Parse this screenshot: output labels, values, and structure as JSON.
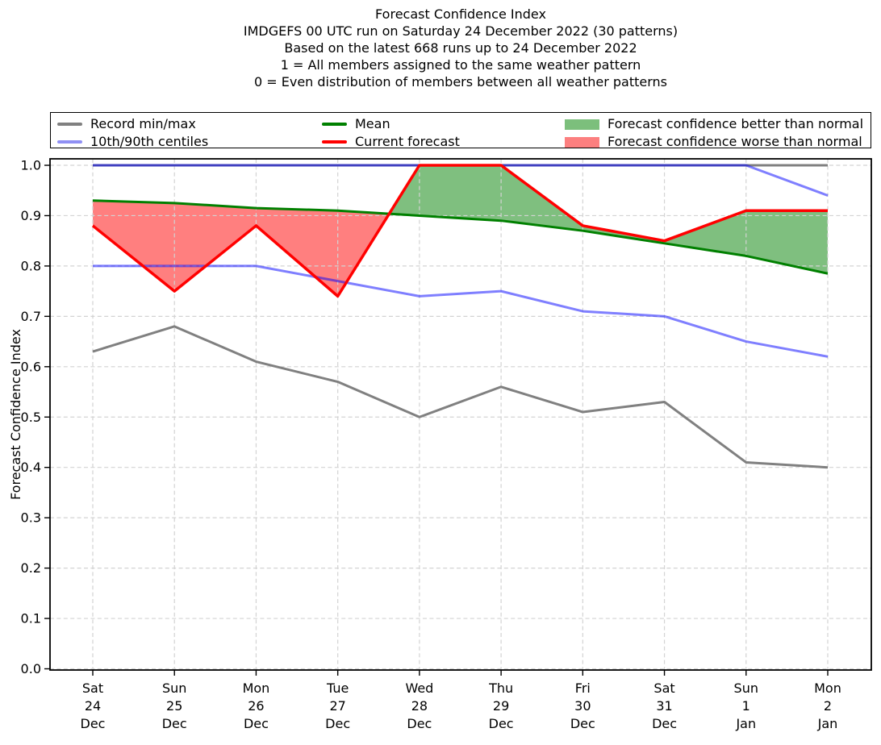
{
  "header": {
    "lines": [
      "Forecast Confidence Index",
      "IMDGEFS 00 UTC run on Saturday 24 December 2022 (30 patterns)",
      "Based on the latest 668 runs up to 24 December 2022",
      "1 = All members assigned to the same weather pattern",
      "0 = Even distribution of members between all weather patterns"
    ]
  },
  "legend": {
    "items": [
      {
        "label": "Record min/max",
        "swatch": "line",
        "color": "#808080"
      },
      {
        "label": "10th/90th centiles",
        "swatch": "line",
        "color": "#9090f5"
      },
      {
        "label": "Mean",
        "swatch": "line",
        "color": "#008000"
      },
      {
        "label": "Current forecast",
        "swatch": "line",
        "color": "#ff0000"
      },
      {
        "label": "Forecast confidence better than normal",
        "swatch": "patch",
        "color": "#7cbf7c"
      },
      {
        "label": "Forecast confidence worse than normal",
        "swatch": "patch",
        "color": "#fc7f7f"
      }
    ]
  },
  "chart_data": {
    "type": "line",
    "title": "Forecast Confidence Index",
    "xlabel": "",
    "ylabel": "Forecast Confidence Index",
    "ylim": [
      0.0,
      1.0
    ],
    "yticks": [
      "0.0",
      "0.1",
      "0.2",
      "0.3",
      "0.4",
      "0.5",
      "0.6",
      "0.7",
      "0.8",
      "0.9",
      "1.0"
    ],
    "grid": true,
    "grid_color": "#d3d3d3",
    "legend_position": "top",
    "categories": [
      [
        "Sat",
        "24",
        "Dec"
      ],
      [
        "Sun",
        "25",
        "Dec"
      ],
      [
        "Mon",
        "26",
        "Dec"
      ],
      [
        "Tue",
        "27",
        "Dec"
      ],
      [
        "Wed",
        "28",
        "Dec"
      ],
      [
        "Thu",
        "29",
        "Dec"
      ],
      [
        "Fri",
        "30",
        "Dec"
      ],
      [
        "Sat",
        "31",
        "Dec"
      ],
      [
        "Sun",
        "1",
        "Jan"
      ],
      [
        "Mon",
        "2",
        "Jan"
      ]
    ],
    "series": [
      {
        "name": "Record max",
        "color": "#808080",
        "width": 3,
        "values": [
          1.0,
          1.0,
          1.0,
          1.0,
          1.0,
          1.0,
          1.0,
          1.0,
          1.0,
          1.0
        ]
      },
      {
        "name": "Record min",
        "color": "#808080",
        "width": 3,
        "values": [
          0.63,
          0.68,
          0.61,
          0.57,
          0.5,
          0.56,
          0.51,
          0.53,
          0.41,
          0.4
        ]
      },
      {
        "name": "90th centile",
        "color": "rgba(0,0,255,0.5)",
        "width": 3,
        "values": [
          1.0,
          1.0,
          1.0,
          1.0,
          1.0,
          1.0,
          1.0,
          1.0,
          1.0,
          0.94
        ]
      },
      {
        "name": "10th centile",
        "color": "rgba(0,0,255,0.5)",
        "width": 3,
        "values": [
          0.8,
          0.8,
          0.8,
          0.77,
          0.74,
          0.75,
          0.71,
          0.7,
          0.65,
          0.62
        ]
      },
      {
        "name": "Mean",
        "color": "#008000",
        "width": 3,
        "values": [
          0.93,
          0.925,
          0.915,
          0.91,
          0.9,
          0.89,
          0.87,
          0.845,
          0.82,
          0.785
        ]
      },
      {
        "name": "Current forecast",
        "color": "#ff0000",
        "width": 3.5,
        "values": [
          0.88,
          0.75,
          0.88,
          0.74,
          1.0,
          1.0,
          0.88,
          0.85,
          0.91,
          0.91
        ]
      }
    ],
    "fills": {
      "better_than_normal_color": "rgba(0,128,0,0.5)",
      "worse_than_normal_color": "rgba(255,0,0,0.5)",
      "description": "green where Current forecast > Mean, red where Current forecast < Mean"
    }
  }
}
